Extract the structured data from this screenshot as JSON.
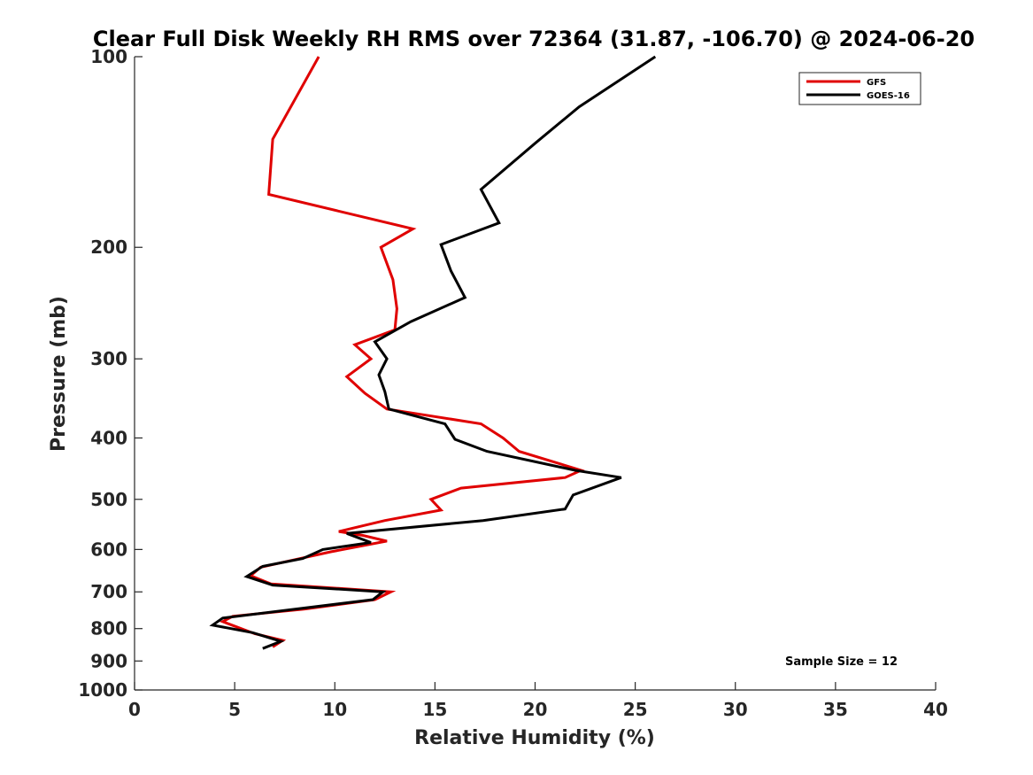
{
  "chart_data": {
    "type": "line",
    "title": "Clear Full Disk Weekly RH RMS over 72364 (31.87, -106.70) @ 2024-06-20",
    "xlabel": "Relative Humidity (%)",
    "ylabel": "Pressure (mb)",
    "xlim": [
      0,
      40
    ],
    "ylim": [
      100,
      1000
    ],
    "y_scale": "log",
    "y_reversed": true,
    "x_ticks": [
      "0",
      "5",
      "10",
      "15",
      "20",
      "25",
      "30",
      "35",
      "40"
    ],
    "y_ticks": [
      "100",
      "200",
      "300",
      "400",
      "500",
      "600",
      "700",
      "800",
      "900",
      "1000"
    ],
    "grid": false,
    "legend_position": "top-right",
    "annotation": "Sample Size = 12",
    "series": [
      {
        "name": "GFS",
        "color": "#e00000",
        "points": [
          {
            "rh": 9.2,
            "p": 100
          },
          {
            "rh": 6.9,
            "p": 135
          },
          {
            "rh": 6.7,
            "p": 165
          },
          {
            "rh": 13.9,
            "p": 187
          },
          {
            "rh": 12.3,
            "p": 200
          },
          {
            "rh": 12.9,
            "p": 225
          },
          {
            "rh": 13.1,
            "p": 250
          },
          {
            "rh": 13.0,
            "p": 270
          },
          {
            "rh": 11.0,
            "p": 285
          },
          {
            "rh": 11.8,
            "p": 300
          },
          {
            "rh": 10.6,
            "p": 320
          },
          {
            "rh": 11.5,
            "p": 340
          },
          {
            "rh": 12.6,
            "p": 360
          },
          {
            "rh": 17.3,
            "p": 380
          },
          {
            "rh": 18.4,
            "p": 400
          },
          {
            "rh": 19.2,
            "p": 420
          },
          {
            "rh": 22.3,
            "p": 450
          },
          {
            "rh": 21.5,
            "p": 462
          },
          {
            "rh": 16.3,
            "p": 480
          },
          {
            "rh": 14.8,
            "p": 500
          },
          {
            "rh": 15.3,
            "p": 520
          },
          {
            "rh": 12.5,
            "p": 540
          },
          {
            "rh": 10.2,
            "p": 562
          },
          {
            "rh": 11.4,
            "p": 570
          },
          {
            "rh": 12.6,
            "p": 582
          },
          {
            "rh": 9.8,
            "p": 605
          },
          {
            "rh": 6.3,
            "p": 640
          },
          {
            "rh": 5.8,
            "p": 660
          },
          {
            "rh": 6.8,
            "p": 680
          },
          {
            "rh": 12.8,
            "p": 700
          },
          {
            "rh": 12.0,
            "p": 720
          },
          {
            "rh": 8.5,
            "p": 745
          },
          {
            "rh": 4.9,
            "p": 765
          },
          {
            "rh": 4.4,
            "p": 780
          },
          {
            "rh": 5.1,
            "p": 795
          },
          {
            "rh": 6.0,
            "p": 815
          },
          {
            "rh": 7.4,
            "p": 835
          },
          {
            "rh": 6.9,
            "p": 855
          }
        ]
      },
      {
        "name": "GOES-16",
        "color": "#000000",
        "points": [
          {
            "rh": 26.0,
            "p": 100
          },
          {
            "rh": 22.2,
            "p": 120
          },
          {
            "rh": 20.0,
            "p": 137
          },
          {
            "rh": 17.3,
            "p": 162
          },
          {
            "rh": 18.2,
            "p": 183
          },
          {
            "rh": 15.3,
            "p": 198
          },
          {
            "rh": 15.8,
            "p": 218
          },
          {
            "rh": 16.5,
            "p": 240
          },
          {
            "rh": 13.8,
            "p": 262
          },
          {
            "rh": 12.0,
            "p": 282
          },
          {
            "rh": 12.6,
            "p": 300
          },
          {
            "rh": 12.2,
            "p": 318
          },
          {
            "rh": 12.5,
            "p": 338
          },
          {
            "rh": 12.7,
            "p": 360
          },
          {
            "rh": 15.5,
            "p": 380
          },
          {
            "rh": 16.0,
            "p": 402
          },
          {
            "rh": 17.6,
            "p": 420
          },
          {
            "rh": 22.0,
            "p": 450
          },
          {
            "rh": 24.3,
            "p": 462
          },
          {
            "rh": 21.9,
            "p": 492
          },
          {
            "rh": 21.5,
            "p": 518
          },
          {
            "rh": 17.4,
            "p": 540
          },
          {
            "rh": 10.6,
            "p": 566
          },
          {
            "rh": 11.8,
            "p": 585
          },
          {
            "rh": 9.4,
            "p": 600
          },
          {
            "rh": 8.4,
            "p": 620
          },
          {
            "rh": 6.4,
            "p": 638
          },
          {
            "rh": 5.6,
            "p": 662
          },
          {
            "rh": 6.9,
            "p": 683
          },
          {
            "rh": 12.4,
            "p": 700
          },
          {
            "rh": 11.9,
            "p": 720
          },
          {
            "rh": 4.4,
            "p": 770
          },
          {
            "rh": 3.9,
            "p": 790
          },
          {
            "rh": 5.9,
            "p": 812
          },
          {
            "rh": 7.3,
            "p": 838
          },
          {
            "rh": 6.4,
            "p": 860
          }
        ]
      }
    ]
  }
}
